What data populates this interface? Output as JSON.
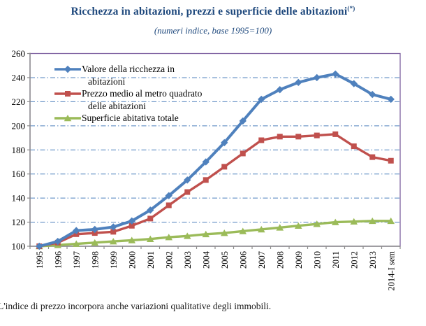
{
  "title": {
    "text": "Ricchezza in abitazioni, prezzi e superficie delle abitazioni",
    "superscript": "(*)"
  },
  "subtitle": "(numeri indice, base 1995=100)",
  "footnote": "L'indice di prezzo incorpora anche variazioni qualitative degli immobili.",
  "colors": {
    "title_blue": "#1F497D",
    "gridline": "#4F81BD",
    "plot_border": "#8064A2",
    "axis": "#8C8C8C",
    "label_text": "#000000"
  },
  "chart_data": {
    "type": "line",
    "title": "Ricchezza in abitazioni, prezzi e superficie delle abitazioni",
    "subtitle": "(numeri indice, base 1995=100)",
    "categories": [
      "1995",
      "1996",
      "1997",
      "1998",
      "1999",
      "2000",
      "2001",
      "2002",
      "2003",
      "2004",
      "2005",
      "2006",
      "2007",
      "2008",
      "2009",
      "2010",
      "2011",
      "2012",
      "2013",
      "2014-I sem"
    ],
    "series": [
      {
        "name": "Valore della ricchezza in abitazioni",
        "color": "#4F81BD",
        "marker": "diamond",
        "values": [
          100,
          104,
          113,
          114,
          116,
          121,
          130,
          142,
          155,
          170,
          186,
          204,
          222,
          230,
          236,
          240,
          243,
          235,
          226,
          222
        ]
      },
      {
        "name": "Prezzo medio al metro quadrato delle abitazioni",
        "color": "#C0504D",
        "marker": "square",
        "values": [
          100,
          103,
          110,
          111,
          112,
          117,
          123,
          134,
          145,
          155,
          166,
          177,
          188,
          191,
          191,
          192,
          193,
          183,
          174,
          171
        ]
      },
      {
        "name": "Superficie abitativa totale",
        "color": "#9BBB59",
        "marker": "triangle",
        "values": [
          100,
          101,
          102,
          103,
          104,
          105,
          106,
          107.5,
          108.5,
          110,
          111,
          112.5,
          114,
          115.5,
          117,
          118.5,
          120,
          120.5,
          121,
          121
        ]
      }
    ],
    "ylim": [
      100,
      260
    ],
    "ytick_step": 20,
    "grid": "horizontal-dashed",
    "legend_position": "inside-top-left"
  }
}
